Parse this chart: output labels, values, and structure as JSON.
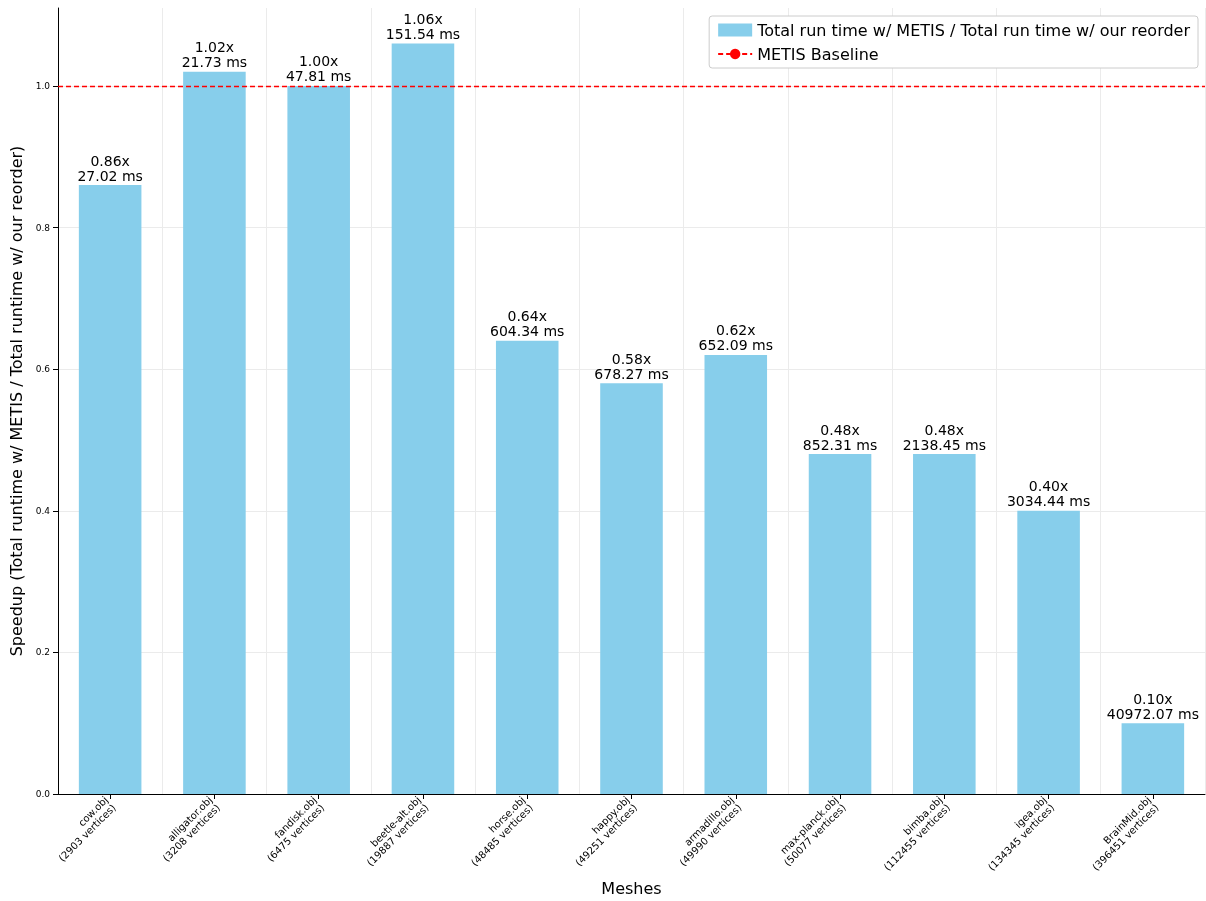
{
  "chart_data": {
    "type": "bar",
    "xlabel": "Meshes",
    "ylabel": "Speedup (Total runtime w/ METIS / Total runtime w/ our reorder)",
    "categories": [
      "cow.obj\n(2903 vertices)",
      "alligator.obj\n(3208 vertices)",
      "fandisk.obj\n(6475 vertices)",
      "beetle-alt.obj\n(19887 vertices)",
      "horse.obj\n(48485 vertices)",
      "happy.obj\n(49251 vertices)",
      "armadillo.obj\n(49990 vertices)",
      "max-planck.obj\n(50077 vertices)",
      "bimba.obj\n(112455 vertices)",
      "igea.obj\n(134345 vertices)",
      "BrainMid.obj\n(396451 vertices)"
    ],
    "series": [
      {
        "name": "Total run time w/ METIS / Total run time w/ our reorder",
        "color": "#87ceeb",
        "values": [
          0.86,
          1.02,
          1.0,
          1.06,
          0.64,
          0.58,
          0.62,
          0.48,
          0.48,
          0.4,
          0.1
        ],
        "value_labels": [
          "0.86x\n27.02 ms",
          "1.02x\n21.73 ms",
          "1.00x\n47.81 ms",
          "1.06x\n151.54 ms",
          "0.64x\n604.34 ms",
          "0.58x\n678.27 ms",
          "0.62x\n652.09 ms",
          "0.48x\n852.31 ms",
          "0.48x\n2138.45 ms",
          "0.40x\n3034.44 ms",
          "0.10x\n40972.07 ms"
        ]
      }
    ],
    "ylim": [
      0,
      1.11
    ],
    "yticks": [
      {
        "value": 0,
        "label": "0.0"
      },
      {
        "value": 0.2,
        "label": "0.2"
      },
      {
        "value": 0.4,
        "label": "0.4"
      },
      {
        "value": 0.6,
        "label": "0.6"
      },
      {
        "value": 0.8,
        "label": "0.8"
      },
      {
        "value": 1.0,
        "label": "1.0"
      }
    ],
    "ref_lines": [
      {
        "axis": "y",
        "value": 1.0,
        "label": "METIS Baseline",
        "color": "#ff0000",
        "line_style": "dashed"
      }
    ],
    "grid": true,
    "legend": "top right"
  }
}
